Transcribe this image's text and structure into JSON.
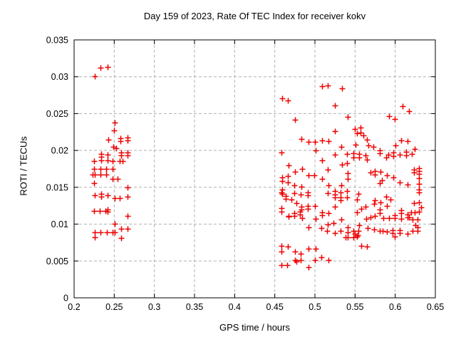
{
  "chart_data": {
    "type": "scatter",
    "title": "Day 159 of 2023, Rate Of TEC Index for receiver kokv",
    "xlabel": "GPS time / hours",
    "ylabel": "ROTI / TECUs",
    "xlim": [
      0.2,
      0.65
    ],
    "ylim": [
      0,
      0.035
    ],
    "xticks": {
      "values": [
        0.2,
        0.25,
        0.3,
        0.35,
        0.4,
        0.45,
        0.5,
        0.55,
        0.6,
        0.65
      ],
      "labels": [
        "0.2",
        "0.25",
        "0.3",
        "0.35",
        "0.4",
        "0.45",
        "0.5",
        "0.55",
        "0.6",
        "0.65"
      ]
    },
    "yticks": {
      "values": [
        0,
        0.005,
        0.01,
        0.015,
        0.02,
        0.025,
        0.03,
        0.035
      ],
      "labels": [
        "0",
        "0.005",
        "0.01",
        "0.015",
        "0.02",
        "0.025",
        "0.03",
        "0.035"
      ]
    },
    "grid": true,
    "legend": "none",
    "marker": "plus",
    "marker_color": "#ee0000",
    "grid_color": "#b0b0b0",
    "series": [
      {
        "name": "ROTI",
        "points": [
          [
            0.233,
            0.0312
          ],
          [
            0.242,
            0.0313
          ],
          [
            0.226,
            0.0301
          ],
          [
            0.251,
            0.0238
          ],
          [
            0.25,
            0.0227
          ],
          [
            0.243,
            0.0215
          ],
          [
            0.258,
            0.0217
          ],
          [
            0.258,
            0.0213
          ],
          [
            0.267,
            0.0218
          ],
          [
            0.267,
            0.0214
          ],
          [
            0.249,
            0.0205
          ],
          [
            0.252,
            0.0203
          ],
          [
            0.234,
            0.0195
          ],
          [
            0.234,
            0.0191
          ],
          [
            0.242,
            0.0194
          ],
          [
            0.259,
            0.0197
          ],
          [
            0.259,
            0.0193
          ],
          [
            0.267,
            0.0197
          ],
          [
            0.267,
            0.0193
          ],
          [
            0.225,
            0.0186
          ],
          [
            0.234,
            0.0187
          ],
          [
            0.242,
            0.0187
          ],
          [
            0.248,
            0.0186
          ],
          [
            0.257,
            0.0186
          ],
          [
            0.26,
            0.0186
          ],
          [
            0.225,
            0.0175
          ],
          [
            0.233,
            0.0175
          ],
          [
            0.24,
            0.0175
          ],
          [
            0.248,
            0.0175
          ],
          [
            0.223,
            0.0167
          ],
          [
            0.226,
            0.0167
          ],
          [
            0.233,
            0.0167
          ],
          [
            0.24,
            0.0167
          ],
          [
            0.248,
            0.0161
          ],
          [
            0.254,
            0.0161
          ],
          [
            0.225,
            0.0156
          ],
          [
            0.267,
            0.015
          ],
          [
            0.226,
            0.0139
          ],
          [
            0.234,
            0.0141
          ],
          [
            0.234,
            0.0137
          ],
          [
            0.242,
            0.0139
          ],
          [
            0.251,
            0.0135
          ],
          [
            0.257,
            0.0135
          ],
          [
            0.267,
            0.0137
          ],
          [
            0.225,
            0.0118
          ],
          [
            0.232,
            0.0118
          ],
          [
            0.239,
            0.0118
          ],
          [
            0.242,
            0.012
          ],
          [
            0.242,
            0.0117
          ],
          [
            0.267,
            0.0111
          ],
          [
            0.251,
            0.0101
          ],
          [
            0.259,
            0.0094
          ],
          [
            0.267,
            0.0094
          ],
          [
            0.226,
            0.0089
          ],
          [
            0.233,
            0.0089
          ],
          [
            0.241,
            0.0089
          ],
          [
            0.248,
            0.0089
          ],
          [
            0.251,
            0.0089
          ],
          [
            0.226,
            0.0082
          ],
          [
            0.259,
            0.0081
          ],
          [
            0.509,
            0.0287
          ],
          [
            0.516,
            0.0288
          ],
          [
            0.534,
            0.0284
          ],
          [
            0.459,
            0.0271
          ],
          [
            0.466,
            0.0268
          ],
          [
            0.525,
            0.0261
          ],
          [
            0.609,
            0.026
          ],
          [
            0.617,
            0.0253
          ],
          [
            0.592,
            0.0247
          ],
          [
            0.541,
            0.0246
          ],
          [
            0.599,
            0.0243
          ],
          [
            0.475,
            0.0242
          ],
          [
            0.55,
            0.0229
          ],
          [
            0.557,
            0.0231
          ],
          [
            0.557,
            0.0224
          ],
          [
            0.552,
            0.0223
          ],
          [
            0.525,
            0.0226
          ],
          [
            0.56,
            0.022
          ],
          [
            0.565,
            0.0215
          ],
          [
            0.483,
            0.0216
          ],
          [
            0.492,
            0.0212
          ],
          [
            0.5,
            0.0212
          ],
          [
            0.509,
            0.0214
          ],
          [
            0.517,
            0.0213
          ],
          [
            0.533,
            0.0205
          ],
          [
            0.551,
            0.0208
          ],
          [
            0.567,
            0.0207
          ],
          [
            0.573,
            0.0205
          ],
          [
            0.6,
            0.0207
          ],
          [
            0.607,
            0.0214
          ],
          [
            0.615,
            0.0213
          ],
          [
            0.624,
            0.0202
          ],
          [
            0.458,
            0.0197
          ],
          [
            0.501,
            0.02
          ],
          [
            0.525,
            0.0194
          ],
          [
            0.54,
            0.0195
          ],
          [
            0.548,
            0.0196
          ],
          [
            0.548,
            0.019
          ],
          [
            0.509,
            0.0187
          ],
          [
            0.555,
            0.0195
          ],
          [
            0.555,
            0.019
          ],
          [
            0.563,
            0.0193
          ],
          [
            0.565,
            0.0188
          ],
          [
            0.581,
            0.02
          ],
          [
            0.581,
            0.0196
          ],
          [
            0.591,
            0.0194
          ],
          [
            0.589,
            0.019
          ],
          [
            0.598,
            0.0197
          ],
          [
            0.598,
            0.0192
          ],
          [
            0.606,
            0.0194
          ],
          [
            0.614,
            0.0198
          ],
          [
            0.614,
            0.0193
          ],
          [
            0.621,
            0.0195
          ],
          [
            0.467,
            0.018
          ],
          [
            0.534,
            0.0181
          ],
          [
            0.54,
            0.0183
          ],
          [
            0.484,
            0.0175
          ],
          [
            0.475,
            0.0171
          ],
          [
            0.516,
            0.0174
          ],
          [
            0.623,
            0.0174
          ],
          [
            0.623,
            0.017
          ],
          [
            0.63,
            0.0176
          ],
          [
            0.63,
            0.0172
          ],
          [
            0.63,
            0.0168
          ],
          [
            0.492,
            0.0166
          ],
          [
            0.499,
            0.0166
          ],
          [
            0.541,
            0.0169
          ],
          [
            0.569,
            0.017
          ],
          [
            0.575,
            0.0172
          ],
          [
            0.575,
            0.0167
          ],
          [
            0.582,
            0.0171
          ],
          [
            0.59,
            0.0166
          ],
          [
            0.459,
            0.0163
          ],
          [
            0.459,
            0.0159
          ],
          [
            0.466,
            0.0165
          ],
          [
            0.466,
            0.0157
          ],
          [
            0.474,
            0.0153
          ],
          [
            0.509,
            0.0161
          ],
          [
            0.517,
            0.0153
          ],
          [
            0.533,
            0.0153
          ],
          [
            0.541,
            0.0161
          ],
          [
            0.483,
            0.0151
          ],
          [
            0.583,
            0.016
          ],
          [
            0.598,
            0.0163
          ],
          [
            0.581,
            0.0156
          ],
          [
            0.606,
            0.0157
          ],
          [
            0.615,
            0.0154
          ],
          [
            0.63,
            0.0162
          ],
          [
            0.63,
            0.0155
          ],
          [
            0.459,
            0.0147
          ],
          [
            0.458,
            0.0143
          ],
          [
            0.459,
            0.0141
          ],
          [
            0.464,
            0.0138
          ],
          [
            0.464,
            0.0134
          ],
          [
            0.474,
            0.0142
          ],
          [
            0.482,
            0.014
          ],
          [
            0.491,
            0.0143
          ],
          [
            0.491,
            0.0139
          ],
          [
            0.516,
            0.0142
          ],
          [
            0.525,
            0.0145
          ],
          [
            0.525,
            0.014
          ],
          [
            0.525,
            0.0136
          ],
          [
            0.532,
            0.0143
          ],
          [
            0.54,
            0.0145
          ],
          [
            0.532,
            0.0136
          ],
          [
            0.532,
            0.0132
          ],
          [
            0.54,
            0.0136
          ],
          [
            0.63,
            0.0147
          ],
          [
            0.63,
            0.0143
          ],
          [
            0.554,
            0.0141
          ],
          [
            0.471,
            0.0133
          ],
          [
            0.477,
            0.0129
          ],
          [
            0.552,
            0.0133
          ],
          [
            0.589,
            0.0137
          ],
          [
            0.594,
            0.0133
          ],
          [
            0.575,
            0.0132
          ],
          [
            0.574,
            0.0128
          ],
          [
            0.582,
            0.013
          ],
          [
            0.483,
            0.0124
          ],
          [
            0.483,
            0.012
          ],
          [
            0.491,
            0.0125
          ],
          [
            0.491,
            0.0121
          ],
          [
            0.5,
            0.0125
          ],
          [
            0.525,
            0.0124
          ],
          [
            0.59,
            0.0125
          ],
          [
            0.563,
            0.0124
          ],
          [
            0.558,
            0.0121
          ],
          [
            0.623,
            0.0129
          ],
          [
            0.63,
            0.013
          ],
          [
            0.632,
            0.0123
          ],
          [
            0.458,
            0.0122
          ],
          [
            0.458,
            0.0117
          ],
          [
            0.474,
            0.0115
          ],
          [
            0.474,
            0.0111
          ],
          [
            0.481,
            0.0117
          ],
          [
            0.481,
            0.0113
          ],
          [
            0.467,
            0.0111
          ],
          [
            0.509,
            0.0116
          ],
          [
            0.509,
            0.0112
          ],
          [
            0.517,
            0.0115
          ],
          [
            0.581,
            0.012
          ],
          [
            0.581,
            0.0115
          ],
          [
            0.62,
            0.0116
          ],
          [
            0.624,
            0.0116
          ],
          [
            0.63,
            0.0117
          ],
          [
            0.607,
            0.0119
          ],
          [
            0.607,
            0.0115
          ],
          [
            0.552,
            0.0116
          ],
          [
            0.484,
            0.0108
          ],
          [
            0.467,
            0.011
          ],
          [
            0.501,
            0.0107
          ],
          [
            0.569,
            0.0109
          ],
          [
            0.575,
            0.0111
          ],
          [
            0.564,
            0.0107
          ],
          [
            0.585,
            0.0108
          ],
          [
            0.599,
            0.0112
          ],
          [
            0.599,
            0.0108
          ],
          [
            0.615,
            0.0113
          ],
          [
            0.615,
            0.0109
          ],
          [
            0.592,
            0.0108
          ],
          [
            0.607,
            0.0107
          ],
          [
            0.617,
            0.0109
          ],
          [
            0.622,
            0.0106
          ],
          [
            0.628,
            0.0106
          ],
          [
            0.492,
            0.0096
          ],
          [
            0.516,
            0.01
          ],
          [
            0.508,
            0.0095
          ],
          [
            0.515,
            0.0091
          ],
          [
            0.523,
            0.0102
          ],
          [
            0.533,
            0.0106
          ],
          [
            0.541,
            0.0096
          ],
          [
            0.555,
            0.0099
          ],
          [
            0.525,
            0.0088
          ],
          [
            0.532,
            0.0091
          ],
          [
            0.541,
            0.0089
          ],
          [
            0.548,
            0.0091
          ],
          [
            0.55,
            0.0087
          ],
          [
            0.538,
            0.0082
          ],
          [
            0.541,
            0.0082
          ],
          [
            0.548,
            0.0082
          ],
          [
            0.566,
            0.0095
          ],
          [
            0.574,
            0.0093
          ],
          [
            0.581,
            0.0091
          ],
          [
            0.584,
            0.0091
          ],
          [
            0.59,
            0.009
          ],
          [
            0.597,
            0.0092
          ],
          [
            0.597,
            0.0088
          ],
          [
            0.599,
            0.0083
          ],
          [
            0.606,
            0.0092
          ],
          [
            0.606,
            0.0088
          ],
          [
            0.615,
            0.0087
          ],
          [
            0.622,
            0.0091
          ],
          [
            0.628,
            0.0091
          ],
          [
            0.628,
            0.0096
          ],
          [
            0.625,
            0.0099
          ],
          [
            0.554,
            0.0091
          ],
          [
            0.553,
            0.0085
          ],
          [
            0.552,
            0.0083
          ],
          [
            0.466,
            0.007
          ],
          [
            0.458,
            0.0071
          ],
          [
            0.458,
            0.0063
          ],
          [
            0.475,
            0.0063
          ],
          [
            0.482,
            0.006
          ],
          [
            0.492,
            0.0067
          ],
          [
            0.501,
            0.0067
          ],
          [
            0.558,
            0.0071
          ],
          [
            0.565,
            0.007
          ],
          [
            0.508,
            0.0055
          ],
          [
            0.517,
            0.0051
          ],
          [
            0.475,
            0.0051
          ],
          [
            0.477,
            0.0049
          ],
          [
            0.482,
            0.0051
          ],
          [
            0.5,
            0.0051
          ],
          [
            0.458,
            0.0044
          ],
          [
            0.465,
            0.0044
          ],
          [
            0.492,
            0.0042
          ]
        ]
      }
    ]
  }
}
